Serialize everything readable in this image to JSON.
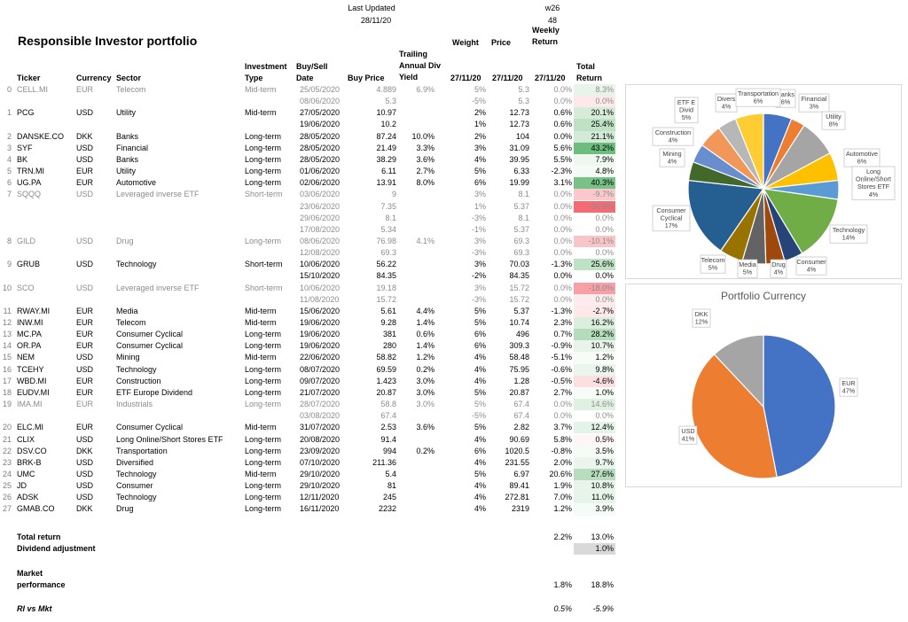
{
  "header": {
    "last_updated_label": "Last Updated",
    "last_updated_value": "28/11/20",
    "week_label": "w26",
    "week_number": "48",
    "title": "Responsible Investor portfolio"
  },
  "columns": {
    "ticker": "Ticker",
    "currency": "Currency",
    "sector": "Sector",
    "investment_type": [
      "Investment",
      "Type"
    ],
    "buy_sell_date": [
      "Buy/Sell",
      "Date"
    ],
    "buy_price": "Buy Price",
    "trailing_div_yield": [
      "Trailing",
      "Annual Div",
      "Yield"
    ],
    "weight": "Weight",
    "price": "Price",
    "weekly_return": [
      "Weekly",
      "Return"
    ],
    "total_return": [
      "Total",
      "Return"
    ],
    "weight_date": "27/11/20",
    "price_date": "27/11/20",
    "weekly_date": "27/11/20"
  },
  "rows": [
    {
      "num": "0",
      "ticker": "CELL.MI",
      "currency": "EUR",
      "sector": "Telecom",
      "type": "Mid-term",
      "date": "25/05/2020",
      "buy": "4.889",
      "div": "6.9%",
      "weight": "5%",
      "price": "5.3",
      "weekly": "0.0%",
      "total": "8.3%",
      "inactive": true,
      "bg": "#e8f4ea"
    },
    {
      "num": "",
      "ticker": "",
      "currency": "",
      "sector": "",
      "type": "",
      "date": "08/06/2020",
      "buy": "5.3",
      "div": "",
      "weight": "-5%",
      "price": "5.3",
      "weekly": "0.0%",
      "total": "0.0%",
      "inactive": true,
      "bg": "#fde9ea"
    },
    {
      "num": "1",
      "ticker": "PCG",
      "currency": "USD",
      "sector": "Utility",
      "type": "Mid-term",
      "date": "27/05/2020",
      "buy": "10.97",
      "div": "",
      "weight": "2%",
      "price": "12.73",
      "weekly": "0.6%",
      "total": "20.1%",
      "inactive": false,
      "bg": "#d6ecd9"
    },
    {
      "num": "",
      "ticker": "",
      "currency": "",
      "sector": "",
      "type": "",
      "date": "19/06/2020",
      "buy": "10.2",
      "div": "",
      "weight": "1%",
      "price": "12.73",
      "weekly": "0.6%",
      "total": "25.4%",
      "inactive": false,
      "bg": "#bfe1c4"
    },
    {
      "num": "2",
      "ticker": "DANSKE.CO",
      "currency": "DKK",
      "sector": "Banks",
      "type": "Long-term",
      "date": "28/05/2020",
      "buy": "87.24",
      "div": "10.0%",
      "weight": "2%",
      "price": "104",
      "weekly": "0.0%",
      "total": "21.1%",
      "inactive": false,
      "bg": "#d3eAd6"
    },
    {
      "num": "3",
      "ticker": "SYF",
      "currency": "USD",
      "sector": "Financial",
      "type": "Long-term",
      "date": "28/05/2020",
      "buy": "21.49",
      "div": "3.3%",
      "weight": "3%",
      "price": "31.09",
      "weekly": "5.6%",
      "total": "43.2%",
      "inactive": false,
      "bg": "#6cbd7e"
    },
    {
      "num": "4",
      "ticker": "BK",
      "currency": "USD",
      "sector": "Banks",
      "type": "Long-term",
      "date": "28/05/2020",
      "buy": "38.29",
      "div": "3.6%",
      "weight": "4%",
      "price": "39.95",
      "weekly": "5.5%",
      "total": "7.9%",
      "inactive": false,
      "bg": "#eef7f0"
    },
    {
      "num": "5",
      "ticker": "TRN.MI",
      "currency": "EUR",
      "sector": "Utility",
      "type": "Long-term",
      "date": "01/06/2020",
      "buy": "6.11",
      "div": "2.7%",
      "weight": "5%",
      "price": "6.33",
      "weekly": "-2.3%",
      "total": "4.8%",
      "inactive": false,
      "bg": "#f4faf5"
    },
    {
      "num": "6",
      "ticker": "UG.PA",
      "currency": "EUR",
      "sector": "Automotive",
      "type": "Long-term",
      "date": "02/06/2020",
      "buy": "13.91",
      "div": "8.0%",
      "weight": "6%",
      "price": "19.99",
      "weekly": "3.1%",
      "total": "40.3%",
      "inactive": false,
      "bg": "#78c288"
    },
    {
      "num": "7",
      "ticker": "SQQQ",
      "currency": "USD",
      "sector": "Leveraged inverse ETF",
      "type": "Short-term",
      "date": "03/06/2020",
      "buy": "9",
      "div": "",
      "weight": "3%",
      "price": "8.1",
      "weekly": "0.0%",
      "total": "-9.7%",
      "inactive": true,
      "bg": "#f9c9cb"
    },
    {
      "num": "",
      "ticker": "",
      "currency": "",
      "sector": "",
      "type": "",
      "date": "23/06/2020",
      "buy": "7.35",
      "div": "",
      "weight": "1%",
      "price": "5.37",
      "weekly": "0.0%",
      "total": "-26.9%",
      "inactive": true,
      "bg": "#f46b73"
    },
    {
      "num": "",
      "ticker": "",
      "currency": "",
      "sector": "",
      "type": "",
      "date": "29/06/2020",
      "buy": "8.1",
      "div": "",
      "weight": "-3%",
      "price": "8.1",
      "weekly": "0.0%",
      "total": "0.0%",
      "inactive": true,
      "bg": ""
    },
    {
      "num": "",
      "ticker": "",
      "currency": "",
      "sector": "",
      "type": "",
      "date": "17/08/2020",
      "buy": "5.34",
      "div": "",
      "weight": "-1%",
      "price": "5.37",
      "weekly": "0.0%",
      "total": "0.0%",
      "inactive": true,
      "bg": ""
    },
    {
      "num": "8",
      "ticker": "GILD",
      "currency": "USD",
      "sector": "Drug",
      "type": "Long-term",
      "date": "08/06/2020",
      "buy": "76.98",
      "div": "4.1%",
      "weight": "3%",
      "price": "69.3",
      "weekly": "0.0%",
      "total": "-10.1%",
      "inactive": true,
      "bg": "#f9c5c8"
    },
    {
      "num": "",
      "ticker": "",
      "currency": "",
      "sector": "",
      "type": "",
      "date": "12/08/2020",
      "buy": "69.3",
      "div": "",
      "weight": "-3%",
      "price": "69.3",
      "weekly": "0.0%",
      "total": "0.0%",
      "inactive": true,
      "bg": ""
    },
    {
      "num": "9",
      "ticker": "GRUB",
      "currency": "USD",
      "sector": "Technology",
      "type": "Short-term",
      "date": "10/06/2020",
      "buy": "56.22",
      "div": "",
      "weight": "3%",
      "price": "70.03",
      "weekly": "-1.3%",
      "total": "25.6%",
      "inactive": false,
      "bg": "#bfe1c4"
    },
    {
      "num": "",
      "ticker": "",
      "currency": "",
      "sector": "",
      "type": "",
      "date": "15/10/2020",
      "buy": "84.35",
      "div": "",
      "weight": "-2%",
      "price": "84.35",
      "weekly": "0.0%",
      "total": "0.0%",
      "inactive": false,
      "bg": ""
    },
    {
      "num": "10",
      "ticker": "SCO",
      "currency": "USD",
      "sector": "Leveraged inverse ETF",
      "type": "Short-term",
      "date": "10/06/2020",
      "buy": "19.18",
      "div": "",
      "weight": "3%",
      "price": "15.72",
      "weekly": "0.0%",
      "total": "-18.0%",
      "inactive": true,
      "bg": "#f7a0a6"
    },
    {
      "num": "",
      "ticker": "",
      "currency": "",
      "sector": "",
      "type": "",
      "date": "11/08/2020",
      "buy": "15.72",
      "div": "",
      "weight": "-3%",
      "price": "15.72",
      "weekly": "0.0%",
      "total": "0.0%",
      "inactive": true,
      "bg": "#fdeced"
    },
    {
      "num": "11",
      "ticker": "RWAY.MI",
      "currency": "EUR",
      "sector": "Media",
      "type": "Mid-term",
      "date": "15/06/2020",
      "buy": "5.61",
      "div": "4.4%",
      "weight": "5%",
      "price": "5.37",
      "weekly": "-1.3%",
      "total": "-2.7%",
      "inactive": false,
      "bg": "#fde9ea"
    },
    {
      "num": "12",
      "ticker": "INW.MI",
      "currency": "EUR",
      "sector": "Telecom",
      "type": "Mid-term",
      "date": "19/06/2020",
      "buy": "9.28",
      "div": "1.4%",
      "weight": "5%",
      "price": "10.74",
      "weekly": "2.3%",
      "total": "16.2%",
      "inactive": false,
      "bg": "#dcefdf"
    },
    {
      "num": "13",
      "ticker": "MC.PA",
      "currency": "EUR",
      "sector": "Consumer Cyclical",
      "type": "Long-term",
      "date": "19/06/2020",
      "buy": "381",
      "div": "0.6%",
      "weight": "6%",
      "price": "496",
      "weekly": "0.7%",
      "total": "28.2%",
      "inactive": false,
      "bg": "#b5dcbb"
    },
    {
      "num": "14",
      "ticker": "OR.PA",
      "currency": "EUR",
      "sector": "Consumer Cyclical",
      "type": "Long-term",
      "date": "19/06/2020",
      "buy": "280",
      "div": "1.4%",
      "weight": "6%",
      "price": "309.3",
      "weekly": "-0.9%",
      "total": "10.7%",
      "inactive": false,
      "bg": "#e8f4ea"
    },
    {
      "num": "15",
      "ticker": "NEM",
      "currency": "USD",
      "sector": "Mining",
      "type": "Mid-term",
      "date": "22/06/2020",
      "buy": "58.82",
      "div": "1.2%",
      "weight": "4%",
      "price": "58.48",
      "weekly": "-5.1%",
      "total": "1.2%",
      "inactive": false,
      "bg": "#f8fcf9"
    },
    {
      "num": "16",
      "ticker": "TCEHY",
      "currency": "USD",
      "sector": "Technology",
      "type": "Long-term",
      "date": "08/07/2020",
      "buy": "69.59",
      "div": "0.2%",
      "weight": "4%",
      "price": "75.95",
      "weekly": "-0.6%",
      "total": "9.8%",
      "inactive": false,
      "bg": "#ebf5ed"
    },
    {
      "num": "17",
      "ticker": "WBD.MI",
      "currency": "EUR",
      "sector": "Construction",
      "type": "Long-term",
      "date": "09/07/2020",
      "buy": "1.423",
      "div": "3.0%",
      "weight": "4%",
      "price": "1.28",
      "weekly": "-0.5%",
      "total": "-4.6%",
      "inactive": false,
      "bg": "#fcdfe1"
    },
    {
      "num": "18",
      "ticker": "EUDV.MI",
      "currency": "EUR",
      "sector": "ETF Europe Dividend",
      "type": "Long-term",
      "date": "21/07/2020",
      "buy": "20.87",
      "div": "3.0%",
      "weight": "5%",
      "price": "20.87",
      "weekly": "2.7%",
      "total": "1.0%",
      "inactive": false,
      "bg": "#f8fcf9"
    },
    {
      "num": "19",
      "ticker": "IMA.MI",
      "currency": "EUR",
      "sector": "Industrials",
      "type": "Long-term",
      "date": "28/07/2020",
      "buy": "58.8",
      "div": "3.0%",
      "weight": "5%",
      "price": "67.4",
      "weekly": "0.0%",
      "total": "14.6%",
      "inactive": true,
      "bg": "#e0f1e3"
    },
    {
      "num": "",
      "ticker": "",
      "currency": "",
      "sector": "",
      "type": "",
      "date": "03/08/2020",
      "buy": "67.4",
      "div": "",
      "weight": "-5%",
      "price": "67.4",
      "weekly": "0.0%",
      "total": "0.0%",
      "inactive": true,
      "bg": ""
    },
    {
      "num": "20",
      "ticker": "ELC.MI",
      "currency": "EUR",
      "sector": "Consumer Cyclical",
      "type": "Mid-term",
      "date": "31/07/2020",
      "buy": "2.53",
      "div": "3.6%",
      "weight": "5%",
      "price": "2.82",
      "weekly": "3.7%",
      "total": "12.4%",
      "inactive": false,
      "bg": "#e4f3e7"
    },
    {
      "num": "21",
      "ticker": "CLIX",
      "currency": "USD",
      "sector": "Long Online/Short Stores ETF",
      "type": "Long-term",
      "date": "20/08/2020",
      "buy": "91.4",
      "div": "",
      "weight": "4%",
      "price": "90.69",
      "weekly": "5.8%",
      "total": "0.5%",
      "inactive": false,
      "bg": "#fef6f6"
    },
    {
      "num": "22",
      "ticker": "DSV.CO",
      "currency": "DKK",
      "sector": "Transportation",
      "type": "Long-term",
      "date": "23/09/2020",
      "buy": "994",
      "div": "0.2%",
      "weight": "6%",
      "price": "1020.5",
      "weekly": "-0.8%",
      "total": "3.5%",
      "inactive": false,
      "bg": "#f5fbf6"
    },
    {
      "num": "23",
      "ticker": "BRK-B",
      "currency": "USD",
      "sector": "Diversified",
      "type": "Long-term",
      "date": "07/10/2020",
      "buy": "211.36",
      "div": "",
      "weight": "4%",
      "price": "231.55",
      "weekly": "2.0%",
      "total": "9.7%",
      "inactive": false,
      "bg": "#ebf5ed"
    },
    {
      "num": "24",
      "ticker": "UMC",
      "currency": "USD",
      "sector": "Technology",
      "type": "Mid-term",
      "date": "29/10/2020",
      "buy": "5.4",
      "div": "",
      "weight": "5%",
      "price": "6.97",
      "weekly": "20.6%",
      "total": "27.6%",
      "inactive": false,
      "bg": "#b8ddbe"
    },
    {
      "num": "25",
      "ticker": "JD",
      "currency": "USD",
      "sector": "Consumer",
      "type": "Long-term",
      "date": "29/10/2020",
      "buy": "81",
      "div": "",
      "weight": "4%",
      "price": "89.41",
      "weekly": "1.9%",
      "total": "10.8%",
      "inactive": false,
      "bg": "#e8f4ea"
    },
    {
      "num": "26",
      "ticker": "ADSK",
      "currency": "USD",
      "sector": "Technology",
      "type": "Long-term",
      "date": "12/11/2020",
      "buy": "245",
      "div": "",
      "weight": "4%",
      "price": "272.81",
      "weekly": "7.0%",
      "total": "11.0%",
      "inactive": false,
      "bg": "#e7f4ea"
    },
    {
      "num": "27",
      "ticker": "GMAB.CO",
      "currency": "DKK",
      "sector": "Drug",
      "type": "Long-term",
      "date": "16/11/2020",
      "buy": "2232",
      "div": "",
      "weight": "4%",
      "price": "2319",
      "weekly": "1.2%",
      "total": "3.9%",
      "inactive": false,
      "bg": "#f5fbf6"
    }
  ],
  "summary": {
    "total_return_label": "Total return",
    "total_return_weekly": "2.2%",
    "total_return_total": "13.0%",
    "dividend_label": "Dividend adjustment",
    "dividend_value": "1.0%",
    "market_label_1": "Market",
    "market_label_2": "performance",
    "market_weekly": "1.8%",
    "market_total": "18.8%",
    "rivsmkt_label": "RI vs Mkt",
    "rivsmkt_weekly": "0.5%",
    "rivsmkt_total": "-5.9%"
  },
  "chart_data": [
    {
      "type": "pie",
      "title": "",
      "slices": [
        {
          "label": "Banks",
          "value": 6,
          "color": "#4472c4"
        },
        {
          "label": "Financial",
          "value": 3,
          "color": "#ed7d31"
        },
        {
          "label": "Utility",
          "value": 8,
          "color": "#a5a5a5"
        },
        {
          "label": "Automotive",
          "value": 6,
          "color": "#ffc000"
        },
        {
          "label": "Long Online/Short Stores ETF",
          "value": 4,
          "color": "#5b9bd5"
        },
        {
          "label": "Technology",
          "value": 14,
          "color": "#70ad47"
        },
        {
          "label": "Consumer",
          "value": 4,
          "color": "#264478"
        },
        {
          "label": "Drug",
          "value": 4,
          "color": "#9e480e"
        },
        {
          "label": "Media",
          "value": 5,
          "color": "#636363"
        },
        {
          "label": "Telecom",
          "value": 5,
          "color": "#997300"
        },
        {
          "label": "Consumer Cyclical",
          "value": 17,
          "color": "#255e91"
        },
        {
          "label": "Mining",
          "value": 4,
          "color": "#43682b"
        },
        {
          "label": "Construction",
          "value": 4,
          "color": "#698ed0"
        },
        {
          "label": "ETF Europe Dividend",
          "value": 5,
          "color": "#f1975a"
        },
        {
          "label": "Diversified",
          "value": 4,
          "color": "#b7b7b7"
        },
        {
          "label": "Transportation",
          "value": 6,
          "color": "#ffcd33"
        }
      ],
      "labels": [
        {
          "lines": [
            "Banks",
            "6%"
          ]
        },
        {
          "lines": [
            "Financial",
            "3%"
          ]
        },
        {
          "lines": [
            "Utility",
            "8%"
          ]
        },
        {
          "lines": [
            "Automotive",
            "6%"
          ]
        },
        {
          "lines": [
            "Long",
            "Online/Short",
            "Stores ETF",
            "4%"
          ]
        },
        {
          "lines": [
            "Technology",
            "14%"
          ]
        },
        {
          "lines": [
            "Consumer",
            "4%"
          ]
        },
        {
          "lines": [
            "Drug",
            "4%"
          ]
        },
        {
          "lines": [
            "Media",
            "5%"
          ]
        },
        {
          "lines": [
            "Telecom",
            "5%"
          ]
        },
        {
          "lines": [
            "Consumer",
            "Cyclical",
            "17%"
          ]
        },
        {
          "lines": [
            "Mining",
            "4%"
          ]
        },
        {
          "lines": [
            "Construction",
            "4%"
          ]
        },
        {
          "lines": [
            "ETF E",
            "Divid",
            "5%"
          ]
        },
        {
          "lines": [
            "Divers",
            "4%"
          ]
        },
        {
          "lines": [
            "Transportation",
            "6%"
          ]
        }
      ]
    },
    {
      "type": "pie",
      "title": "Portfolio Currency",
      "slices": [
        {
          "label": "EUR",
          "value": 47,
          "color": "#4472c4"
        },
        {
          "label": "USD",
          "value": 41,
          "color": "#ed7d31"
        },
        {
          "label": "DKK",
          "value": 12,
          "color": "#a5a5a5"
        }
      ],
      "labels": [
        {
          "lines": [
            "EUR",
            "47%"
          ]
        },
        {
          "lines": [
            "USD",
            "41%"
          ]
        },
        {
          "lines": [
            "DKK",
            "12%"
          ]
        }
      ]
    }
  ]
}
